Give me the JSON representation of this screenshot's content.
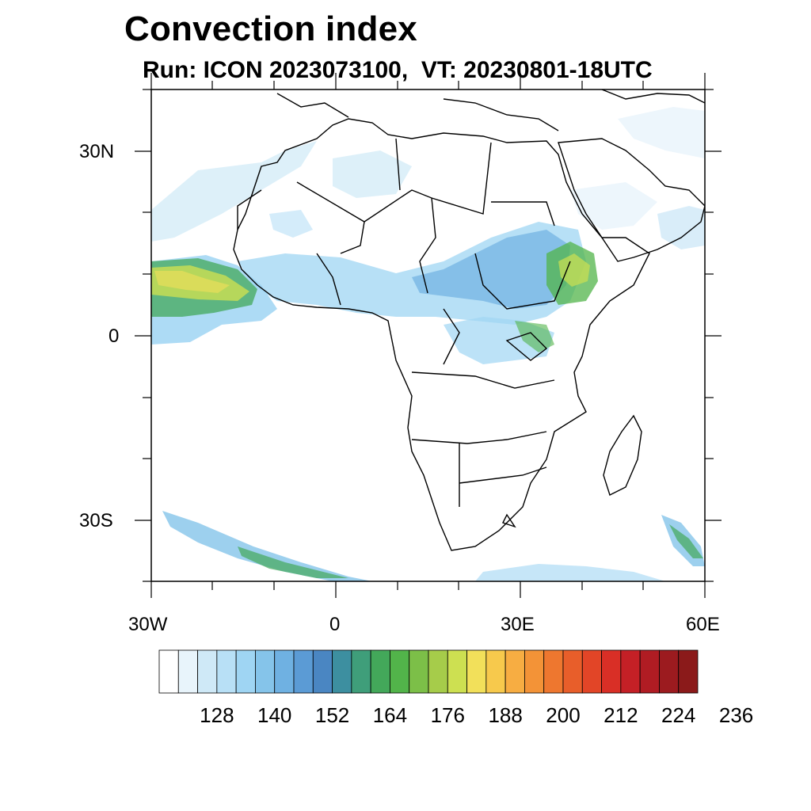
{
  "title": "Convection index",
  "subtitle": "Run: ICON 2023073100,  VT: 20230801-18UTC",
  "axes": {
    "lat_labels": [
      "30N",
      "0",
      "30S"
    ],
    "lon_labels": [
      "30W",
      "0",
      "30E",
      "60E"
    ]
  },
  "colorbar": {
    "labels": [
      "128",
      "140",
      "152",
      "164",
      "176",
      "188",
      "200",
      "212",
      "224",
      "236"
    ],
    "colors": [
      "#ffffff",
      "#e8f4fb",
      "#cfe9f7",
      "#b8e0f6",
      "#9fd5f3",
      "#85c4ea",
      "#6fb1e2",
      "#5b9bd5",
      "#4a86c2",
      "#3d8fa0",
      "#3f9e7a",
      "#43a85a",
      "#52b44a",
      "#7cbf48",
      "#a6cc4a",
      "#cde051",
      "#f2e05a",
      "#f7c94c",
      "#f7ad42",
      "#f39337",
      "#ee772f",
      "#e85e2a",
      "#e24527",
      "#d92f26",
      "#c42026",
      "#b01c23",
      "#9c1b1f",
      "#8b1a1a"
    ]
  }
}
